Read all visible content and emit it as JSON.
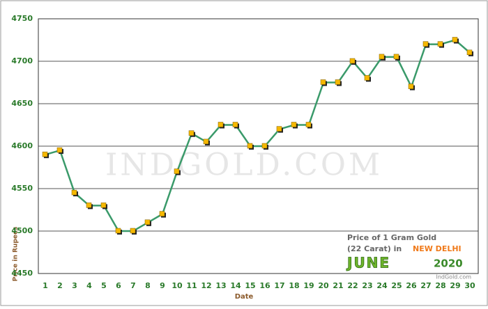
{
  "chart_data": {
    "type": "line",
    "x_label": "Date",
    "y_label": "Price in Rupees",
    "watermark": "INDGOLD.COM",
    "annotation": {
      "line1": "Price of 1 Gram Gold",
      "line2": "(22 Carat) in",
      "city": "NEW DELHI",
      "month": "JUNE",
      "year": "2020",
      "site": "IndGold.com"
    },
    "categories": [
      "1",
      "2",
      "3",
      "4",
      "5",
      "6",
      "7",
      "8",
      "9",
      "10",
      "11",
      "12",
      "13",
      "14",
      "15",
      "16",
      "17",
      "18",
      "19",
      "20",
      "21",
      "22",
      "23",
      "24",
      "25",
      "26",
      "27",
      "28",
      "29",
      "30"
    ],
    "series": [
      {
        "color": "#3a9a6a",
        "values": [
          4590,
          4595,
          4545,
          4530,
          4530,
          4500,
          4500,
          4510,
          4520,
          4570,
          4615,
          4605,
          4625,
          4625,
          4600,
          4600,
          4620,
          4625,
          4625,
          4675,
          4675,
          4700,
          4680,
          4705,
          4705,
          4670,
          4720,
          4720,
          4725,
          4710
        ]
      }
    ],
    "marker_color": "#f5b800",
    "ylim": [
      4450,
      4750
    ],
    "yticks": [
      4450,
      4500,
      4550,
      4600,
      4650,
      4700,
      4750
    ],
    "grid": true
  }
}
